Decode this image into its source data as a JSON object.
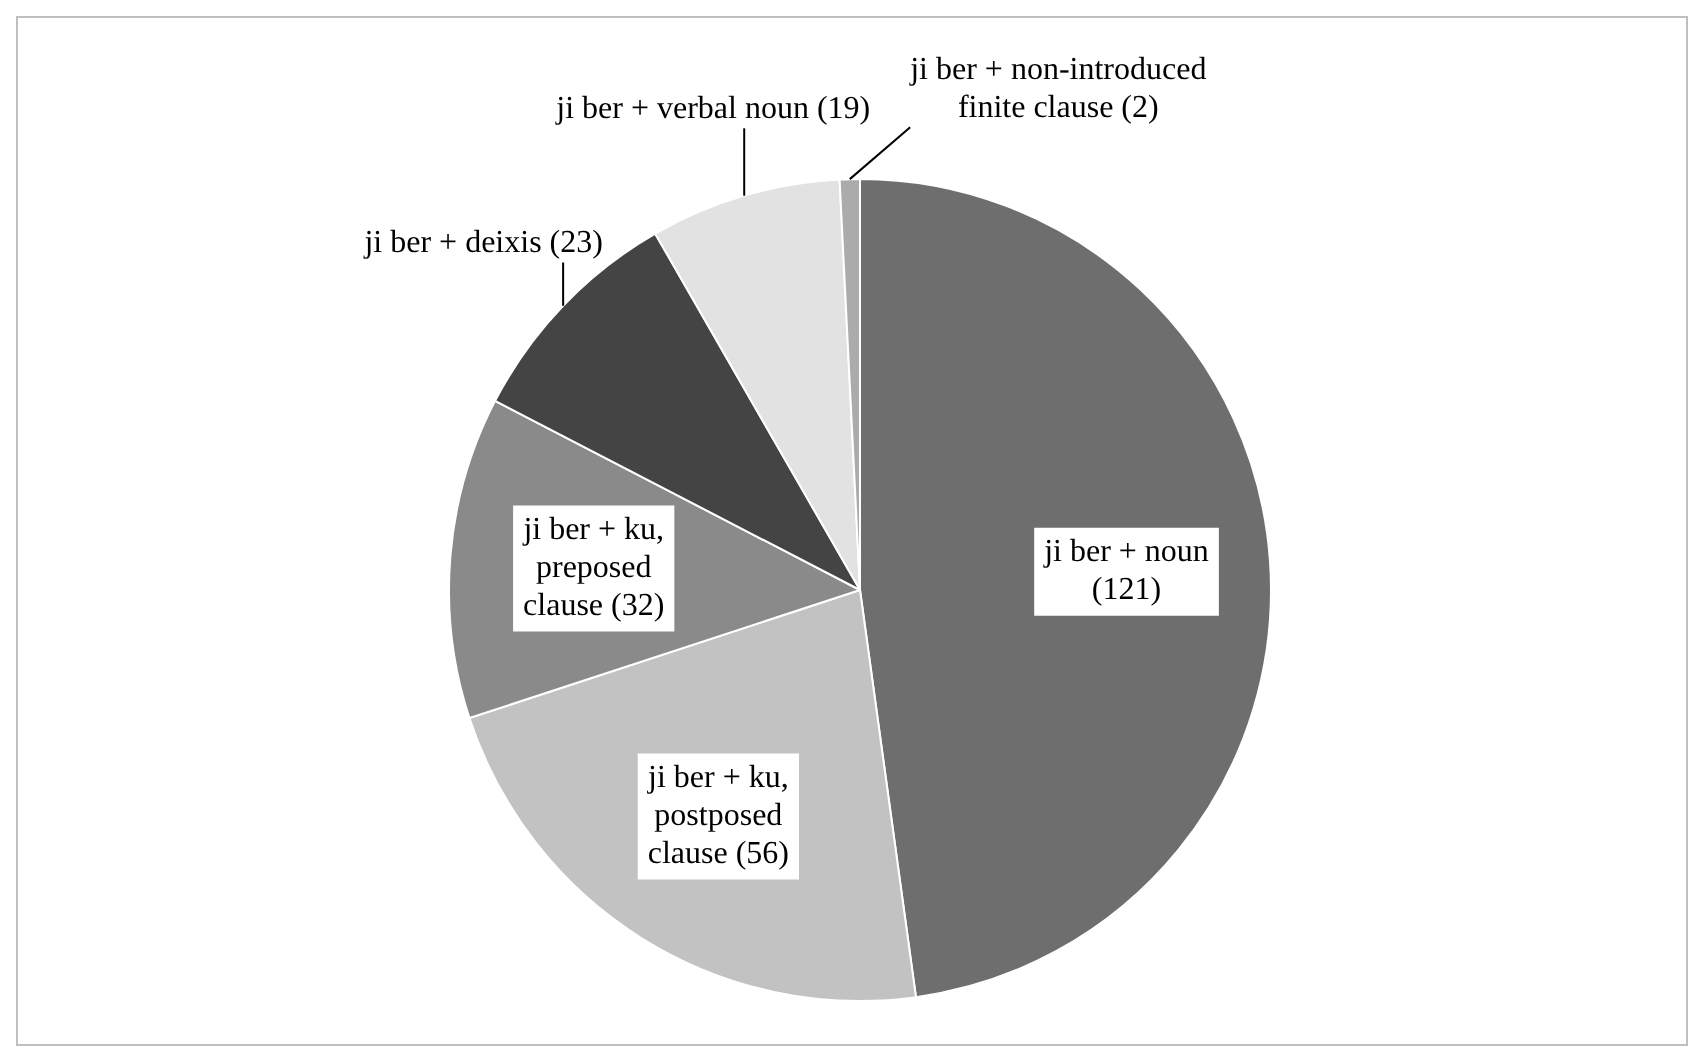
{
  "chart_data": {
    "type": "pie",
    "categories": [
      "ji ber + noun",
      "ji ber + ku, postposed clause",
      "ji ber + ku, preposed clause",
      "ji ber + deixis",
      "ji ber + verbal noun",
      "ji ber + non-introduced finite clause"
    ],
    "values": [
      121,
      56,
      32,
      23,
      19,
      2
    ],
    "colors": [
      "#6e6e6e",
      "#c2c2c2",
      "#8a8a8a",
      "#444444",
      "#e2e2e2",
      "#ababab"
    ],
    "value_labels": [
      "(121)",
      "(56)",
      "(32)",
      "(23)",
      "(19)",
      "(2)"
    ],
    "legend": false
  }
}
